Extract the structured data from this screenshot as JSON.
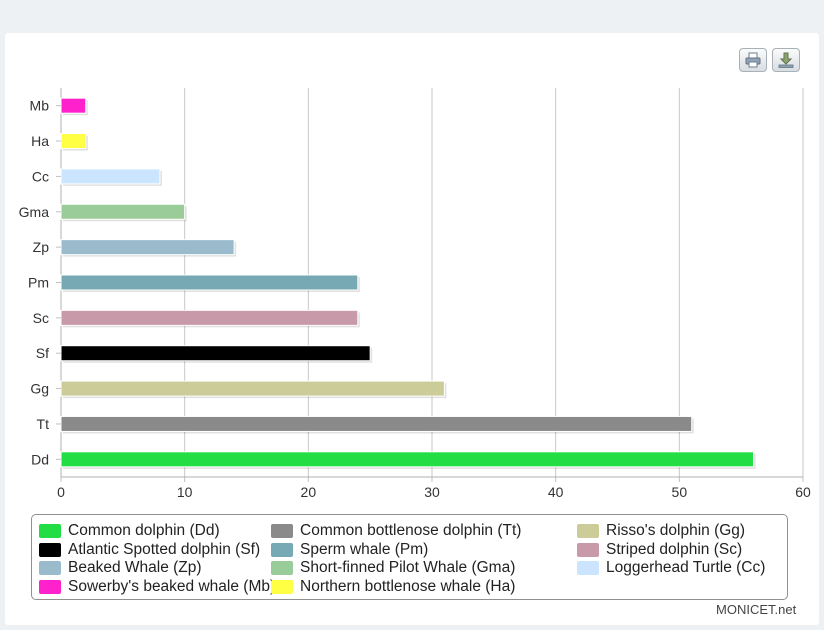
{
  "toolbar": {
    "print_icon": "printer-icon",
    "download_icon": "download-icon"
  },
  "credit": "MONICET.net",
  "chart_data": {
    "type": "bar",
    "orientation": "horizontal",
    "title": "",
    "xlabel": "",
    "ylabel": "",
    "xlim": [
      0,
      60
    ],
    "x_ticks": [
      "0",
      "10",
      "20",
      "30",
      "40",
      "50",
      "60"
    ],
    "grid": true,
    "legend_position": "bottom",
    "categories": [
      "Mb",
      "Ha",
      "Cc",
      "Gma",
      "Zp",
      "Pm",
      "Sc",
      "Sf",
      "Gg",
      "Tt",
      "Dd"
    ],
    "values": [
      2,
      2,
      8,
      10,
      14,
      24,
      24,
      25,
      31,
      51,
      56
    ],
    "colors": [
      "#ff22cc",
      "#ffff44",
      "#cce5ff",
      "#99cc99",
      "#99bbcc",
      "#77a9b5",
      "#c899a8",
      "#000000",
      "#cccc99",
      "#8a8a8a",
      "#22dd44"
    ],
    "legend": [
      {
        "label": "Common dolphin (Dd)",
        "color": "#22dd44"
      },
      {
        "label": "Common bottlenose dolphin (Tt)",
        "color": "#8a8a8a"
      },
      {
        "label": "Risso's dolphin (Gg)",
        "color": "#cccc99"
      },
      {
        "label": "Atlantic Spotted dolphin (Sf)",
        "color": "#000000"
      },
      {
        "label": "Sperm whale (Pm)",
        "color": "#77a9b5"
      },
      {
        "label": "Striped dolphin (Sc)",
        "color": "#c899a8"
      },
      {
        "label": "Beaked Whale (Zp)",
        "color": "#99bbcc"
      },
      {
        "label": "Short-finned Pilot Whale (Gma)",
        "color": "#99cc99"
      },
      {
        "label": "Loggerhead Turtle (Cc)",
        "color": "#cce5ff"
      },
      {
        "label": "Sowerby's beaked whale (Mb)",
        "color": "#ff22cc"
      },
      {
        "label": "Northern bottlenose whale (Ha)",
        "color": "#ffff44"
      }
    ]
  }
}
